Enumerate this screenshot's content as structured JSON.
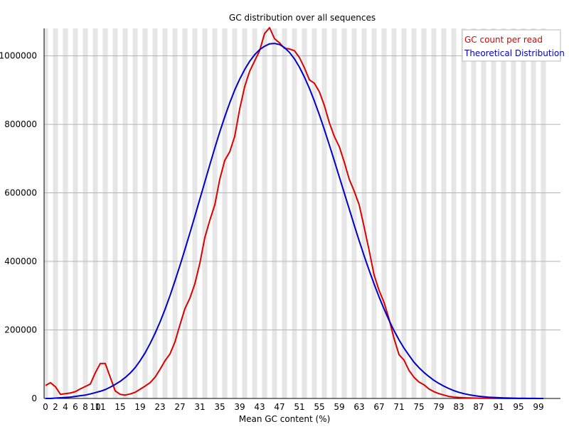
{
  "chart_data": {
    "type": "line",
    "title": "GC distribution over all sequences",
    "xlabel": "Mean GC content (%)",
    "ylabel": "",
    "xlim": [
      0,
      100
    ],
    "ylim": [
      0,
      1080000
    ],
    "x_ticks": [
      0,
      2,
      4,
      6,
      8,
      10,
      11,
      15,
      19,
      23,
      27,
      31,
      35,
      39,
      43,
      47,
      51,
      55,
      59,
      63,
      67,
      71,
      75,
      79,
      83,
      87,
      91,
      95,
      99
    ],
    "x_tick_labels": [
      "0",
      "2",
      "4",
      "6",
      "8",
      "10",
      "11",
      "15",
      "19",
      "23",
      "27",
      "31",
      "35",
      "39",
      "43",
      "47",
      "51",
      "55",
      "59",
      "63",
      "67",
      "71",
      "75",
      "79",
      "83",
      "87",
      "91",
      "95",
      "99"
    ],
    "y_ticks": [
      0,
      200000,
      400000,
      600000,
      800000,
      1000000
    ],
    "y_tick_labels": [
      "0",
      "200000",
      "400000",
      "600000",
      "800000",
      "1000000"
    ],
    "grid": true,
    "legend_position": "top-right",
    "series": [
      {
        "name": "GC count per read",
        "color": "#dd0000",
        "x": [
          0,
          1,
          2,
          3,
          4,
          5,
          6,
          7,
          8,
          9,
          10,
          11,
          12,
          13,
          14,
          15,
          16,
          17,
          18,
          19,
          20,
          21,
          22,
          23,
          24,
          25,
          26,
          27,
          28,
          29,
          30,
          31,
          32,
          33,
          34,
          35,
          36,
          37,
          38,
          39,
          40,
          41,
          42,
          43,
          44,
          45,
          46,
          47,
          48,
          49,
          50,
          51,
          52,
          53,
          54,
          55,
          56,
          57,
          58,
          59,
          60,
          61,
          62,
          63,
          64,
          65,
          66,
          67,
          68,
          69,
          70,
          71,
          72,
          73,
          74,
          75,
          76,
          77,
          78,
          79,
          80,
          81,
          82,
          83,
          84,
          85,
          86,
          87,
          88,
          89,
          90,
          91,
          92,
          93,
          94,
          95,
          96,
          97,
          98,
          99,
          100
        ],
        "y": [
          38000,
          46000,
          34000,
          12000,
          14000,
          16000,
          20000,
          28000,
          35000,
          42000,
          75000,
          102000,
          102000,
          62000,
          22000,
          12000,
          10000,
          13000,
          18000,
          27000,
          36000,
          46000,
          62000,
          85000,
          110000,
          130000,
          165000,
          215000,
          262000,
          293000,
          335000,
          395000,
          470000,
          520000,
          565000,
          640000,
          695000,
          720000,
          765000,
          845000,
          910000,
          955000,
          985000,
          1015000,
          1065000,
          1082000,
          1050000,
          1038000,
          1022000,
          1020000,
          1015000,
          995000,
          965000,
          930000,
          920000,
          895000,
          855000,
          805000,
          765000,
          735000,
          690000,
          640000,
          605000,
          565000,
          500000,
          432000,
          360000,
          315000,
          280000,
          232000,
          175000,
          128000,
          112000,
          82000,
          62000,
          48000,
          40000,
          28000,
          20000,
          14000,
          10000,
          6000,
          4000,
          3000,
          2000,
          1500,
          1000,
          800,
          600,
          400,
          300,
          200,
          100,
          50,
          0,
          0,
          0,
          0,
          0,
          0,
          0
        ],
        "values_note": ""
      },
      {
        "name": "Theoretical Distribution",
        "color": "#0000cc",
        "x": [
          0,
          1,
          2,
          3,
          4,
          5,
          6,
          7,
          8,
          9,
          10,
          11,
          12,
          13,
          14,
          15,
          16,
          17,
          18,
          19,
          20,
          21,
          22,
          23,
          24,
          25,
          26,
          27,
          28,
          29,
          30,
          31,
          32,
          33,
          34,
          35,
          36,
          37,
          38,
          39,
          40,
          41,
          42,
          43,
          44,
          45,
          46,
          47,
          48,
          49,
          50,
          51,
          52,
          53,
          54,
          55,
          56,
          57,
          58,
          59,
          60,
          61,
          62,
          63,
          64,
          65,
          66,
          67,
          68,
          69,
          70,
          71,
          72,
          73,
          74,
          75,
          76,
          77,
          78,
          79,
          80,
          81,
          82,
          83,
          84,
          85,
          86,
          87,
          88,
          89,
          90,
          91,
          92,
          93,
          94,
          95,
          96,
          97,
          98,
          99,
          100
        ],
        "y": [
          0,
          0,
          1000,
          2000,
          3000,
          4000,
          6000,
          8000,
          10000,
          13000,
          17000,
          21000,
          26000,
          33000,
          41000,
          50000,
          61000,
          74000,
          90000,
          110000,
          133000,
          160000,
          190000,
          223000,
          260000,
          300000,
          343000,
          388000,
          435000,
          483000,
          532000,
          582000,
          632000,
          682000,
          731000,
          778000,
          822000,
          863000,
          900000,
          932000,
          960000,
          984000,
          1003000,
          1018000,
          1028000,
          1035000,
          1036000,
          1033000,
          1024000,
          1010000,
          991000,
          967000,
          938000,
          905000,
          868000,
          828000,
          785000,
          740000,
          694000,
          647000,
          600000,
          553000,
          506000,
          460000,
          416000,
          374000,
          334000,
          296000,
          261000,
          228000,
          198000,
          171000,
          147000,
          126000,
          106000,
          90000,
          76000,
          64000,
          53000,
          44000,
          36000,
          29000,
          23000,
          18000,
          14000,
          11000,
          8500,
          6500,
          5000,
          3800,
          2900,
          2200,
          1600,
          1200,
          900,
          600,
          400,
          300,
          200,
          100,
          0
        ]
      }
    ]
  }
}
